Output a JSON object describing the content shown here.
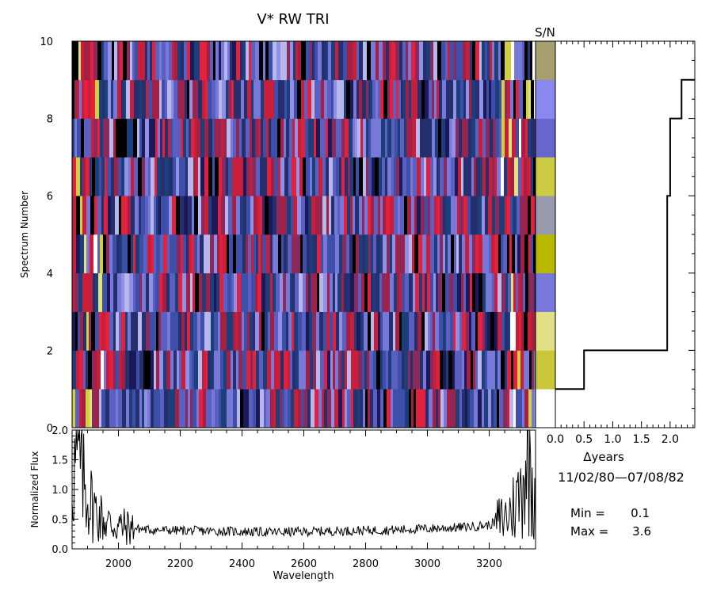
{
  "title": "V*  RW TRI",
  "sn_label": "S/N",
  "heatmap": {
    "type": "heatmap",
    "ylabel": "Spectrum Number",
    "ylim": [
      0,
      10
    ],
    "y_ticks": [
      "0",
      "2",
      "4",
      "6",
      "8",
      "10"
    ],
    "wavelength_range": [
      1850,
      3350
    ],
    "rows": 10,
    "palette": [
      "#000000",
      "#1a1a5a",
      "#24306e",
      "#1c3f7c",
      "#3d4fa8",
      "#5a5fc0",
      "#7878d8",
      "#9090e6",
      "#b7b7ec",
      "#8a2a5c",
      "#a41f44",
      "#c81e3a",
      "#e3213c",
      "#d0d040",
      "#e2e27a",
      "#ffffff"
    ],
    "colors": {
      "background": "#ffffff",
      "axis": "#000000"
    }
  },
  "sn_strip": {
    "colors": [
      "#ffffff",
      "#c8c83a",
      "#e2e086",
      "#7878dc",
      "#b8b800",
      "#9a9aae",
      "#cccc44",
      "#6666cc",
      "#8888ee",
      "#a6a070"
    ]
  },
  "time_panel": {
    "type": "line",
    "xlabel": "Δyears",
    "x_ticks": [
      "0.0",
      "0.5",
      "1.0",
      "1.5",
      "2.0"
    ],
    "xlim": [
      0,
      2.43
    ],
    "ylim": [
      0,
      10
    ],
    "steps": [
      {
        "x": 0.0,
        "y": 1
      },
      {
        "x": 0.5,
        "y": 1
      },
      {
        "x": 0.5,
        "y": 2
      },
      {
        "x": 1.95,
        "y": 2
      },
      {
        "x": 1.95,
        "y": 6
      },
      {
        "x": 2.0,
        "y": 6
      },
      {
        "x": 2.0,
        "y": 8
      },
      {
        "x": 2.2,
        "y": 8
      },
      {
        "x": 2.2,
        "y": 9
      },
      {
        "x": 2.43,
        "y": 9
      }
    ],
    "date_range": "11/02/80—07/08/82",
    "min_label": "Min =",
    "min_value": "0.1",
    "max_label": "Max =",
    "max_value": "3.6"
  },
  "flux_panel": {
    "type": "line",
    "xlabel": "Wavelength",
    "ylabel": "Normalized Flux",
    "xlim": [
      1850,
      3350
    ],
    "ylim": [
      0,
      2
    ],
    "x_ticks": [
      "2000",
      "2200",
      "2400",
      "2600",
      "2800",
      "3000",
      "3200"
    ],
    "y_ticks": [
      "0.0",
      "0.5",
      "1.0",
      "1.5",
      "2.0"
    ],
    "profile": [
      {
        "x": 1850,
        "y": 1.3
      },
      {
        "x": 1870,
        "y": 1.5
      },
      {
        "x": 1890,
        "y": 1.05
      },
      {
        "x": 1910,
        "y": 0.8
      },
      {
        "x": 1930,
        "y": 0.6
      },
      {
        "x": 1960,
        "y": 0.45
      },
      {
        "x": 2000,
        "y": 0.38
      },
      {
        "x": 2100,
        "y": 0.32
      },
      {
        "x": 2300,
        "y": 0.3
      },
      {
        "x": 2500,
        "y": 0.28
      },
      {
        "x": 2700,
        "y": 0.3
      },
      {
        "x": 2900,
        "y": 0.32
      },
      {
        "x": 3100,
        "y": 0.36
      },
      {
        "x": 3200,
        "y": 0.4
      },
      {
        "x": 3260,
        "y": 0.55
      },
      {
        "x": 3300,
        "y": 0.9
      },
      {
        "x": 3320,
        "y": 1.6
      },
      {
        "x": 3340,
        "y": 1.2
      },
      {
        "x": 3350,
        "y": 1.0
      }
    ]
  }
}
